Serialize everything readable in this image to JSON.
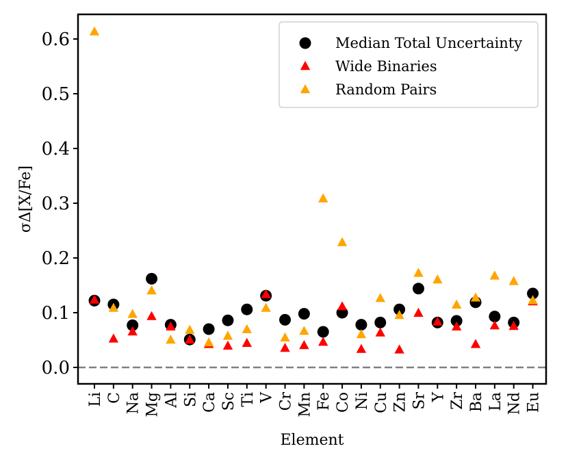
{
  "chart_data": {
    "type": "scatter",
    "xlabel": "Element",
    "ylabel": "σΔ[X/Fe]",
    "ylim": [
      -0.03,
      0.645
    ],
    "yticks": [
      0.0,
      0.1,
      0.2,
      0.3,
      0.4,
      0.5,
      0.6
    ],
    "ytick_labels": [
      "0.0",
      "0.1",
      "0.2",
      "0.3",
      "0.4",
      "0.5",
      "0.6"
    ],
    "reference_line": {
      "y": 0.0,
      "style": "dashed",
      "color": "#808080"
    },
    "legend_position": "top-right",
    "categories": [
      "Li",
      "C",
      "Na",
      "Mg",
      "Al",
      "Si",
      "Ca",
      "Sc",
      "Ti",
      "V",
      "Cr",
      "Mn",
      "Fe",
      "Co",
      "Ni",
      "Cu",
      "Zn",
      "Sr",
      "Y",
      "Zr",
      "Ba",
      "La",
      "Nd",
      "Eu"
    ],
    "series": [
      {
        "name": "Median Total Uncertainty",
        "marker": "circle",
        "color": "#000000",
        "values": [
          0.122,
          0.115,
          0.077,
          0.162,
          0.078,
          0.051,
          0.07,
          0.086,
          0.106,
          0.131,
          0.087,
          0.098,
          0.065,
          0.1,
          0.078,
          0.082,
          0.106,
          0.144,
          0.082,
          0.085,
          0.119,
          0.093,
          0.082,
          0.135
        ]
      },
      {
        "name": "Wide Binaries",
        "marker": "triangle",
        "color": "#ff0000",
        "values": [
          0.123,
          0.052,
          0.065,
          0.093,
          0.074,
          0.05,
          0.042,
          0.039,
          0.044,
          0.133,
          0.035,
          0.04,
          0.046,
          0.111,
          0.033,
          0.063,
          0.032,
          0.099,
          0.083,
          0.074,
          0.042,
          0.076,
          0.075,
          0.12
        ]
      },
      {
        "name": "Random Pairs",
        "marker": "triangle",
        "color": "#ffa500",
        "values": [
          0.613,
          0.108,
          0.097,
          0.14,
          0.05,
          0.068,
          0.045,
          0.057,
          0.069,
          0.108,
          0.054,
          0.066,
          0.308,
          0.228,
          0.06,
          0.126,
          0.095,
          0.172,
          0.16,
          0.114,
          0.127,
          0.167,
          0.157,
          0.122
        ]
      }
    ]
  }
}
